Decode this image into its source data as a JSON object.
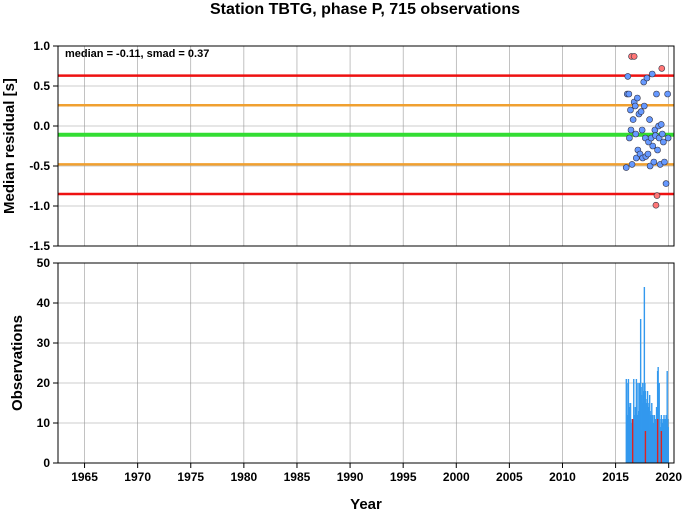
{
  "chart_data": [
    {
      "type": "scatter",
      "title": "Station TBTG, phase P, 715 observations",
      "ylabel": "Median residual [s]",
      "annotation": "median = -0.11, smad = 0.37",
      "xlim": [
        1962.5,
        2020.5
      ],
      "ylim": [
        -1.5,
        1.0
      ],
      "y_ticks": [
        "1.0",
        "0.5",
        "0.0",
        "-0.5",
        "-1.0",
        "-1.5"
      ],
      "grid": true,
      "reference_lines": [
        {
          "name": "median",
          "value": -0.11,
          "color": "#33dd33"
        },
        {
          "name": "median + smad",
          "value": 0.26,
          "color": "#f0a030"
        },
        {
          "name": "median - smad",
          "value": -0.48,
          "color": "#f0a030"
        },
        {
          "name": "median + 2 smad",
          "value": 0.63,
          "color": "#ee1111"
        },
        {
          "name": "median - 2 smad",
          "value": -0.85,
          "color": "#ee1111"
        }
      ],
      "series": [
        {
          "color": "#6699ff",
          "points": [
            [
              2016.0,
              -0.52
            ],
            [
              2016.1,
              0.4
            ],
            [
              2016.15,
              0.62
            ],
            [
              2016.25,
              0.4
            ],
            [
              2016.3,
              -0.15
            ],
            [
              2016.4,
              0.2
            ],
            [
              2016.45,
              -0.05
            ],
            [
              2016.55,
              -0.48
            ],
            [
              2016.65,
              0.08
            ],
            [
              2016.75,
              0.3
            ],
            [
              2016.85,
              0.25
            ],
            [
              2016.9,
              -0.1
            ],
            [
              2016.95,
              -0.4
            ],
            [
              2017.05,
              0.35
            ],
            [
              2017.1,
              -0.3
            ],
            [
              2017.2,
              0.15
            ],
            [
              2017.3,
              -0.35
            ],
            [
              2017.4,
              0.18
            ],
            [
              2017.5,
              -0.05
            ],
            [
              2017.55,
              -0.4
            ],
            [
              2017.65,
              0.55
            ],
            [
              2017.7,
              0.25
            ],
            [
              2017.8,
              -0.15
            ],
            [
              2017.85,
              -0.38
            ],
            [
              2017.95,
              0.6
            ],
            [
              2018.05,
              -0.35
            ],
            [
              2018.1,
              -0.2
            ],
            [
              2018.2,
              0.08
            ],
            [
              2018.25,
              -0.5
            ],
            [
              2018.35,
              -0.15
            ],
            [
              2018.45,
              0.65
            ],
            [
              2018.5,
              -0.25
            ],
            [
              2018.6,
              -0.45
            ],
            [
              2018.7,
              -0.05
            ],
            [
              2018.75,
              -0.12
            ],
            [
              2018.85,
              0.4
            ],
            [
              2018.95,
              -0.3
            ],
            [
              2019.05,
              0.0
            ],
            [
              2019.1,
              -0.15
            ],
            [
              2019.2,
              -0.48
            ],
            [
              2019.3,
              0.02
            ],
            [
              2019.4,
              -0.1
            ],
            [
              2019.5,
              -0.2
            ],
            [
              2019.6,
              -0.45
            ],
            [
              2019.75,
              -0.72
            ],
            [
              2019.9,
              0.4
            ],
            [
              2019.95,
              -0.15
            ]
          ]
        },
        {
          "color": "#ff7777",
          "points": [
            [
              2016.5,
              0.87
            ],
            [
              2016.75,
              0.87
            ],
            [
              2018.8,
              -0.99
            ],
            [
              2018.9,
              -0.87
            ],
            [
              2019.35,
              0.72
            ]
          ]
        }
      ]
    },
    {
      "type": "bar",
      "xlabel": "Year",
      "ylabel": "Observations",
      "xlim": [
        1962.5,
        2020.5
      ],
      "ylim": [
        0,
        50
      ],
      "x_ticks": [
        "1965",
        "1970",
        "1975",
        "1980",
        "1985",
        "1990",
        "1995",
        "2000",
        "2005",
        "2010",
        "2015",
        "2020"
      ],
      "y_ticks": [
        "0",
        "10",
        "20",
        "30",
        "40",
        "50"
      ],
      "grid": true,
      "series": [
        {
          "color": "#3399ee",
          "points": [
            [
              2016.0,
              21
            ],
            [
              2016.05,
              12
            ],
            [
              2016.1,
              10
            ],
            [
              2016.15,
              20
            ],
            [
              2016.2,
              21
            ],
            [
              2016.25,
              15
            ],
            [
              2016.3,
              14
            ],
            [
              2016.35,
              12
            ],
            [
              2016.4,
              15
            ],
            [
              2016.45,
              10
            ],
            [
              2016.5,
              8
            ],
            [
              2016.55,
              11
            ],
            [
              2016.6,
              9
            ],
            [
              2016.65,
              8
            ],
            [
              2016.7,
              21
            ],
            [
              2016.75,
              12
            ],
            [
              2016.8,
              10
            ],
            [
              2016.85,
              14
            ],
            [
              2016.9,
              12
            ],
            [
              2016.95,
              21
            ],
            [
              2017.0,
              12
            ],
            [
              2017.05,
              10
            ],
            [
              2017.1,
              20
            ],
            [
              2017.15,
              13
            ],
            [
              2017.2,
              11
            ],
            [
              2017.25,
              20
            ],
            [
              2017.3,
              14
            ],
            [
              2017.35,
              36
            ],
            [
              2017.4,
              19
            ],
            [
              2017.45,
              17
            ],
            [
              2017.5,
              15
            ],
            [
              2017.55,
              20
            ],
            [
              2017.6,
              18
            ],
            [
              2017.65,
              17
            ],
            [
              2017.7,
              44
            ],
            [
              2017.75,
              20
            ],
            [
              2017.8,
              18
            ],
            [
              2017.85,
              16
            ],
            [
              2017.9,
              15
            ],
            [
              2017.95,
              13
            ],
            [
              2018.0,
              18
            ],
            [
              2018.05,
              15
            ],
            [
              2018.1,
              14
            ],
            [
              2018.15,
              12
            ],
            [
              2018.2,
              17
            ],
            [
              2018.25,
              13
            ],
            [
              2018.3,
              12
            ],
            [
              2018.35,
              11
            ],
            [
              2018.4,
              15
            ],
            [
              2018.45,
              10
            ],
            [
              2018.5,
              12
            ],
            [
              2018.55,
              10
            ],
            [
              2018.6,
              9
            ],
            [
              2018.65,
              12
            ],
            [
              2018.7,
              8
            ],
            [
              2018.75,
              11
            ],
            [
              2018.8,
              10
            ],
            [
              2018.85,
              14
            ],
            [
              2018.9,
              9
            ],
            [
              2018.95,
              23
            ],
            [
              2019.0,
              24
            ],
            [
              2019.05,
              18
            ],
            [
              2019.1,
              20
            ],
            [
              2019.15,
              11
            ],
            [
              2019.2,
              9
            ],
            [
              2019.25,
              7
            ],
            [
              2019.3,
              12
            ],
            [
              2019.35,
              10
            ],
            [
              2019.4,
              8
            ],
            [
              2019.45,
              11
            ],
            [
              2019.5,
              10
            ],
            [
              2019.55,
              12
            ],
            [
              2019.6,
              9
            ],
            [
              2019.65,
              11
            ],
            [
              2019.7,
              8
            ],
            [
              2019.75,
              12
            ],
            [
              2019.8,
              10
            ],
            [
              2019.85,
              23
            ],
            [
              2019.9,
              11
            ],
            [
              2019.95,
              9
            ]
          ]
        },
        {
          "color": "#dd2222",
          "points": [
            [
              2016.6,
              11
            ],
            [
              2017.8,
              8
            ],
            [
              2018.95,
              11
            ],
            [
              2019.3,
              8
            ]
          ]
        }
      ]
    }
  ]
}
